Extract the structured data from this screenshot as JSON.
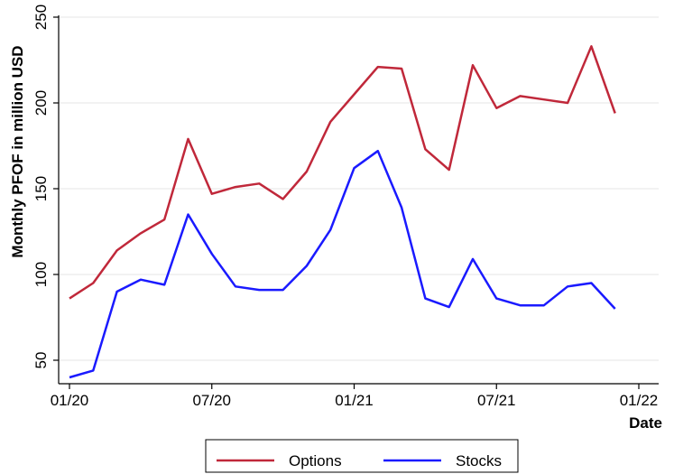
{
  "chart_data": {
    "type": "line",
    "title": "",
    "xlabel": "Date",
    "ylabel": "Monthly PFOF in million USD",
    "x": [
      "2020-01",
      "2020-02",
      "2020-03",
      "2020-04",
      "2020-05",
      "2020-06",
      "2020-07",
      "2020-08",
      "2020-09",
      "2020-10",
      "2020-11",
      "2020-12",
      "2021-01",
      "2021-02",
      "2021-03",
      "2021-04",
      "2021-05",
      "2021-06",
      "2021-07",
      "2021-08",
      "2021-09",
      "2021-10",
      "2021-11",
      "2021-12"
    ],
    "x_ticks": [
      {
        "value": "2020-01",
        "label": "01/20"
      },
      {
        "value": "2020-07",
        "label": "07/20"
      },
      {
        "value": "2021-01",
        "label": "01/21"
      },
      {
        "value": "2021-07",
        "label": "07/21"
      },
      {
        "value": "2022-01",
        "label": "01/22"
      }
    ],
    "xlim": [
      "2020-01",
      "2022-01"
    ],
    "ylim": [
      40,
      250
    ],
    "y_ticks": [
      50,
      100,
      150,
      200,
      250
    ],
    "grid": true,
    "legend_position": "bottom",
    "series": [
      {
        "name": "Options",
        "color": "#c0283a",
        "values": [
          86,
          95,
          114,
          124,
          132,
          179,
          147,
          151,
          153,
          144,
          160,
          189,
          205,
          221,
          220,
          173,
          161,
          222,
          197,
          204,
          202,
          200,
          233,
          194
        ]
      },
      {
        "name": "Stocks",
        "color": "#1a1aff",
        "values": [
          40,
          44,
          90,
          97,
          94,
          135,
          112,
          93,
          91,
          91,
          105,
          126,
          162,
          172,
          139,
          86,
          81,
          109,
          86,
          82,
          82,
          93,
          95,
          80
        ]
      }
    ]
  }
}
